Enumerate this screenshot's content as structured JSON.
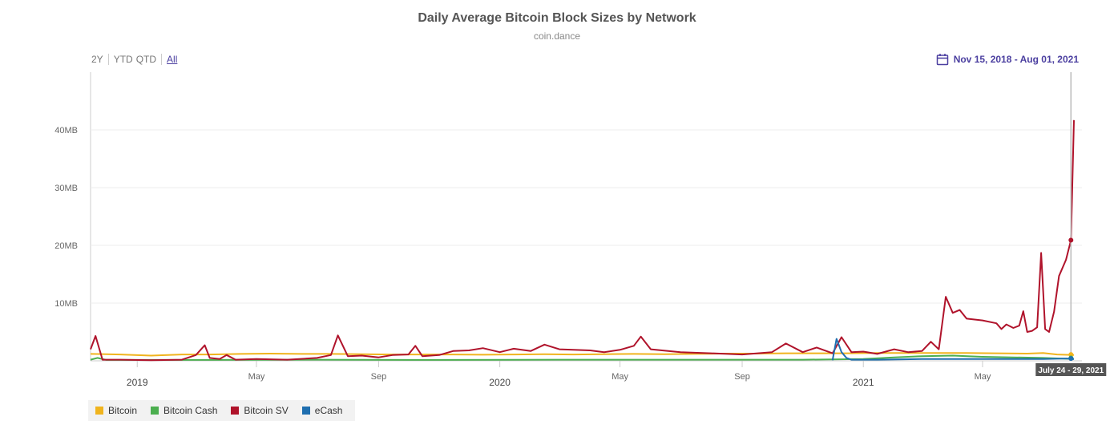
{
  "chart_data": {
    "type": "line",
    "title": "Daily Average Bitcoin Block Sizes by Network",
    "subtitle": "coin.dance",
    "range_buttons": [
      "2Y",
      "YTD",
      "QTD",
      "All"
    ],
    "active_range": "All",
    "date_range_label": "Nov 15, 2018 - Aug 01, 2021",
    "x_start": "2018-11-15",
    "x_end": "2021-08-01",
    "x_ticks": [
      {
        "date": "2019-01-01",
        "label": "2019",
        "major": true
      },
      {
        "date": "2019-05-01",
        "label": "May",
        "major": false
      },
      {
        "date": "2019-09-01",
        "label": "Sep",
        "major": false
      },
      {
        "date": "2020-01-01",
        "label": "2020",
        "major": true
      },
      {
        "date": "2020-05-01",
        "label": "May",
        "major": false
      },
      {
        "date": "2020-09-01",
        "label": "Sep",
        "major": false
      },
      {
        "date": "2021-01-01",
        "label": "2021",
        "major": true
      },
      {
        "date": "2021-05-01",
        "label": "May",
        "major": false
      }
    ],
    "y_ticks": [
      {
        "value": 10,
        "label": "10MB"
      },
      {
        "value": 20,
        "label": "20MB"
      },
      {
        "value": 30,
        "label": "30MB"
      },
      {
        "value": 40,
        "label": "40MB"
      }
    ],
    "ylim": [
      0,
      50
    ],
    "tooltip_label": "July 24 - 29, 2021",
    "crosshair_date": "2021-07-29",
    "grid": true,
    "legend_position": "bottom-left",
    "series": [
      {
        "name": "Bitcoin",
        "color": "#f0b41e",
        "points": [
          [
            "2018-11-15",
            1.2
          ],
          [
            "2018-12-15",
            1.1
          ],
          [
            "2019-01-15",
            0.9
          ],
          [
            "2019-02-15",
            1.1
          ],
          [
            "2019-03-15",
            1.1
          ],
          [
            "2019-04-15",
            1.2
          ],
          [
            "2019-05-15",
            1.25
          ],
          [
            "2019-06-15",
            1.2
          ],
          [
            "2019-07-15",
            1.2
          ],
          [
            "2019-08-15",
            1.15
          ],
          [
            "2019-09-15",
            1.1
          ],
          [
            "2019-10-15",
            1.1
          ],
          [
            "2019-11-15",
            1.1
          ],
          [
            "2019-12-15",
            1.05
          ],
          [
            "2020-01-15",
            1.1
          ],
          [
            "2020-02-15",
            1.15
          ],
          [
            "2020-03-15",
            1.1
          ],
          [
            "2020-04-15",
            1.15
          ],
          [
            "2020-05-15",
            1.2
          ],
          [
            "2020-06-15",
            1.15
          ],
          [
            "2020-07-15",
            1.2
          ],
          [
            "2020-08-15",
            1.25
          ],
          [
            "2020-09-15",
            1.25
          ],
          [
            "2020-10-15",
            1.3
          ],
          [
            "2020-11-15",
            1.3
          ],
          [
            "2020-12-15",
            1.3
          ],
          [
            "2021-01-15",
            1.35
          ],
          [
            "2021-02-15",
            1.35
          ],
          [
            "2021-03-15",
            1.35
          ],
          [
            "2021-04-15",
            1.35
          ],
          [
            "2021-05-15",
            1.3
          ],
          [
            "2021-06-15",
            1.25
          ],
          [
            "2021-07-01",
            1.35
          ],
          [
            "2021-07-15",
            1.1
          ],
          [
            "2021-08-01",
            1.0
          ]
        ]
      },
      {
        "name": "Bitcoin Cash",
        "color": "#4caf50",
        "points": [
          [
            "2018-11-15",
            0.2
          ],
          [
            "2018-11-22",
            0.5
          ],
          [
            "2018-12-01",
            0.15
          ],
          [
            "2019-03-01",
            0.15
          ],
          [
            "2019-07-01",
            0.2
          ],
          [
            "2019-11-01",
            0.15
          ],
          [
            "2020-03-01",
            0.2
          ],
          [
            "2020-07-01",
            0.2
          ],
          [
            "2020-11-01",
            0.2
          ],
          [
            "2021-01-01",
            0.3
          ],
          [
            "2021-02-01",
            0.6
          ],
          [
            "2021-03-01",
            0.8
          ],
          [
            "2021-04-01",
            0.9
          ],
          [
            "2021-05-01",
            0.7
          ],
          [
            "2021-06-01",
            0.6
          ],
          [
            "2021-07-01",
            0.5
          ],
          [
            "2021-08-01",
            0.3
          ]
        ]
      },
      {
        "name": "Bitcoin SV",
        "color": "#b0132b",
        "points": [
          [
            "2018-11-15",
            2.0
          ],
          [
            "2018-11-20",
            4.3
          ],
          [
            "2018-11-27",
            0.2
          ],
          [
            "2018-12-15",
            0.2
          ],
          [
            "2019-01-15",
            0.1
          ],
          [
            "2019-02-15",
            0.2
          ],
          [
            "2019-03-01",
            1.0
          ],
          [
            "2019-03-10",
            2.7
          ],
          [
            "2019-03-15",
            0.5
          ],
          [
            "2019-03-25",
            0.3
          ],
          [
            "2019-04-01",
            1.0
          ],
          [
            "2019-04-10",
            0.2
          ],
          [
            "2019-05-01",
            0.3
          ],
          [
            "2019-06-01",
            0.2
          ],
          [
            "2019-07-01",
            0.5
          ],
          [
            "2019-07-15",
            1.0
          ],
          [
            "2019-07-22",
            4.4
          ],
          [
            "2019-08-01",
            0.8
          ],
          [
            "2019-08-15",
            0.9
          ],
          [
            "2019-09-01",
            0.6
          ],
          [
            "2019-09-15",
            1.0
          ],
          [
            "2019-10-01",
            1.1
          ],
          [
            "2019-10-08",
            2.6
          ],
          [
            "2019-10-15",
            0.8
          ],
          [
            "2019-11-01",
            1.0
          ],
          [
            "2019-11-15",
            1.7
          ],
          [
            "2019-12-01",
            1.8
          ],
          [
            "2019-12-15",
            2.2
          ],
          [
            "2020-01-01",
            1.5
          ],
          [
            "2020-01-15",
            2.1
          ],
          [
            "2020-02-01",
            1.7
          ],
          [
            "2020-02-15",
            2.8
          ],
          [
            "2020-03-01",
            2.0
          ],
          [
            "2020-04-01",
            1.8
          ],
          [
            "2020-04-15",
            1.5
          ],
          [
            "2020-05-01",
            1.9
          ],
          [
            "2020-05-15",
            2.6
          ],
          [
            "2020-05-22",
            4.2
          ],
          [
            "2020-06-01",
            2.0
          ],
          [
            "2020-07-01",
            1.5
          ],
          [
            "2020-08-01",
            1.3
          ],
          [
            "2020-09-01",
            1.1
          ],
          [
            "2020-10-01",
            1.5
          ],
          [
            "2020-10-15",
            3.0
          ],
          [
            "2020-11-01",
            1.5
          ],
          [
            "2020-11-15",
            2.3
          ],
          [
            "2020-12-01",
            1.3
          ],
          [
            "2020-12-10",
            4.1
          ],
          [
            "2020-12-20",
            1.5
          ],
          [
            "2021-01-01",
            1.6
          ],
          [
            "2021-01-15",
            1.2
          ],
          [
            "2021-02-01",
            2.0
          ],
          [
            "2021-02-15",
            1.5
          ],
          [
            "2021-03-01",
            1.7
          ],
          [
            "2021-03-10",
            3.3
          ],
          [
            "2021-03-18",
            2.0
          ],
          [
            "2021-03-25",
            11.1
          ],
          [
            "2021-04-01",
            8.3
          ],
          [
            "2021-04-08",
            8.8
          ],
          [
            "2021-04-15",
            7.3
          ],
          [
            "2021-05-01",
            7.0
          ],
          [
            "2021-05-15",
            6.5
          ],
          [
            "2021-05-20",
            5.5
          ],
          [
            "2021-05-25",
            6.3
          ],
          [
            "2021-06-01",
            5.7
          ],
          [
            "2021-06-07",
            6.1
          ],
          [
            "2021-06-11",
            8.6
          ],
          [
            "2021-06-15",
            5.0
          ],
          [
            "2021-06-20",
            5.2
          ],
          [
            "2021-06-25",
            5.8
          ],
          [
            "2021-06-29",
            18.7
          ],
          [
            "2021-07-03",
            5.5
          ],
          [
            "2021-07-07",
            5.0
          ],
          [
            "2021-07-12",
            8.5
          ],
          [
            "2021-07-17",
            14.7
          ],
          [
            "2021-07-24",
            17.5
          ],
          [
            "2021-07-29",
            20.9
          ],
          [
            "2021-08-01",
            41.7
          ]
        ]
      },
      {
        "name": "eCash",
        "color": "#1f6fb0",
        "points": [
          [
            "2020-12-01",
            0.1
          ],
          [
            "2020-12-05",
            3.8
          ],
          [
            "2020-12-10",
            1.5
          ],
          [
            "2020-12-15",
            0.5
          ],
          [
            "2020-12-20",
            0.2
          ],
          [
            "2021-01-15",
            0.2
          ],
          [
            "2021-03-01",
            0.3
          ],
          [
            "2021-05-01",
            0.3
          ],
          [
            "2021-07-01",
            0.3
          ],
          [
            "2021-07-25",
            0.4
          ],
          [
            "2021-08-01",
            0.3
          ]
        ]
      }
    ]
  }
}
